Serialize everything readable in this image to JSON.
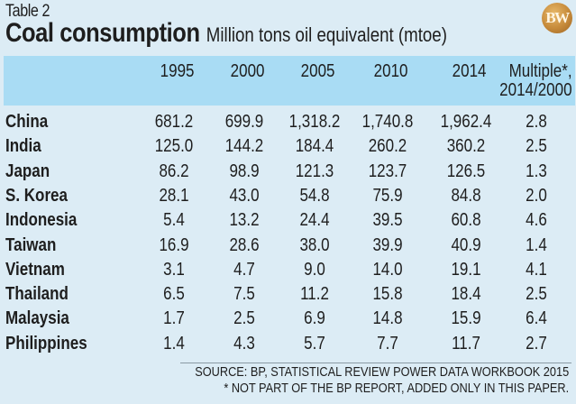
{
  "table_label": "Table 2",
  "title": "Coal consumption",
  "subtitle": "Million tons oil equivalent (mtoe)",
  "logo_text": "BW",
  "colors": {
    "background": "#dcecf5",
    "header_band": "#a9dcf4",
    "logo_gold": "#c68a3a"
  },
  "chart_data": {
    "type": "table",
    "title": "Coal consumption",
    "subtitle": "Million tons oil equivalent (mtoe)",
    "columns": [
      "",
      "1995",
      "2000",
      "2005",
      "2010",
      "2014",
      "Multiple*, 2014/2000"
    ],
    "column_headers": [
      {
        "line1": "1995",
        "line2": ""
      },
      {
        "line1": "2000",
        "line2": ""
      },
      {
        "line1": "2005",
        "line2": ""
      },
      {
        "line1": "2010",
        "line2": ""
      },
      {
        "line1": "2014",
        "line2": ""
      },
      {
        "line1": "Multiple*,",
        "line2": "2014/2000"
      }
    ],
    "rows": [
      {
        "country": "China",
        "values": [
          "681.2",
          "699.9",
          "1,318.2",
          "1,740.8",
          "1,962.4",
          "2.8"
        ]
      },
      {
        "country": "India",
        "values": [
          "125.0",
          "144.2",
          "184.4",
          "260.2",
          "360.2",
          "2.5"
        ]
      },
      {
        "country": "Japan",
        "values": [
          "86.2",
          "98.9",
          "121.3",
          "123.7",
          "126.5",
          "1.3"
        ]
      },
      {
        "country": "S. Korea",
        "values": [
          "28.1",
          "43.0",
          "54.8",
          "75.9",
          "84.8",
          "2.0"
        ]
      },
      {
        "country": "Indonesia",
        "values": [
          "5.4",
          "13.2",
          "24.4",
          "39.5",
          "60.8",
          "4.6"
        ]
      },
      {
        "country": "Taiwan",
        "values": [
          "16.9",
          "28.6",
          "38.0",
          "39.9",
          "40.9",
          "1.4"
        ]
      },
      {
        "country": "Vietnam",
        "values": [
          "3.1",
          "4.7",
          "9.0",
          "14.0",
          "19.1",
          "4.1"
        ]
      },
      {
        "country": "Thailand",
        "values": [
          "6.5",
          "7.5",
          "11.2",
          "15.8",
          "18.4",
          "2.5"
        ]
      },
      {
        "country": "Malaysia",
        "values": [
          "1.7",
          "2.5",
          "6.9",
          "14.8",
          "15.9",
          "6.4"
        ]
      },
      {
        "country": "Philippines",
        "values": [
          "1.4",
          "4.3",
          "5.7",
          "7.7",
          "11.7",
          "2.7"
        ]
      }
    ]
  },
  "footer": {
    "source": "SOURCE: BP, STATISTICAL REVIEW POWER DATA WORKBOOK 2015",
    "note": "* NOT PART OF THE BP REPORT, ADDED ONLY IN THIS PAPER."
  }
}
